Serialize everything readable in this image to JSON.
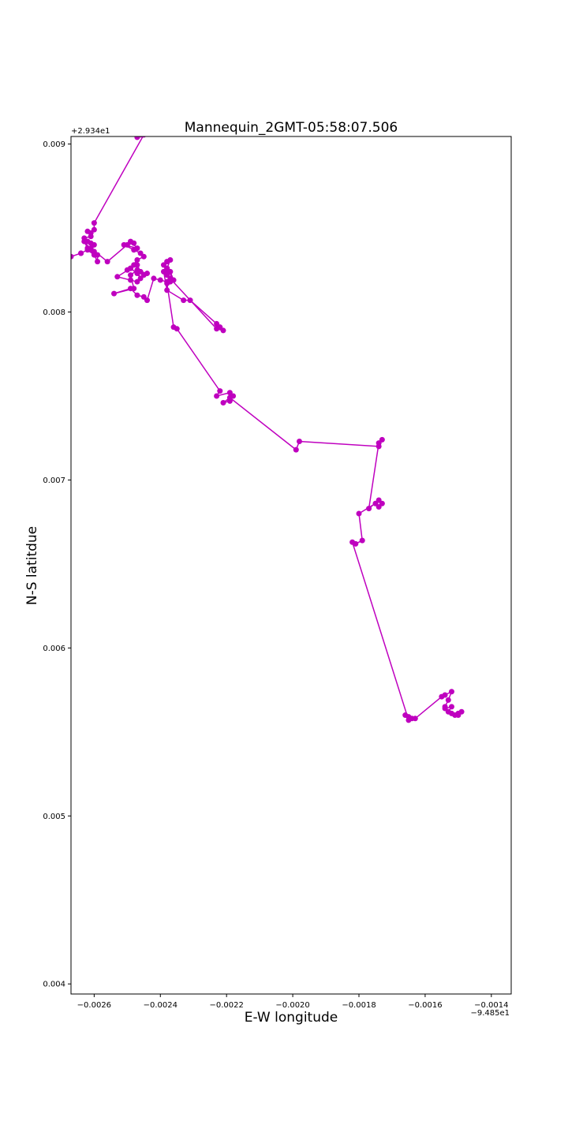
{
  "chart_data": {
    "type": "line",
    "title": "Mannequin_2GMT-05:58:07.506",
    "xlabel": "E-W longitude",
    "ylabel": "N-S latitdue",
    "x_offset_label": "−9.485e1",
    "y_offset_label": "+2.934e1",
    "xlim": [
      -0.00267,
      -0.00134
    ],
    "ylim": [
      0.00394,
      0.009045
    ],
    "xticks": [
      -0.0026,
      -0.0024,
      -0.0022,
      -0.002,
      -0.0018,
      -0.0016,
      -0.0014
    ],
    "xtick_labels": [
      "−0.0026",
      "−0.0024",
      "−0.0022",
      "−0.0020",
      "−0.0018",
      "−0.0016",
      "−0.0014"
    ],
    "yticks": [
      0.004,
      0.005,
      0.006,
      0.007,
      0.008,
      0.009
    ],
    "ytick_labels": [
      "0.004",
      "0.005",
      "0.006",
      "0.007",
      "0.008",
      "0.009"
    ],
    "grid": false,
    "line_color": "#bf00bf",
    "marker_color": "#bf00bf",
    "x": [
      -0.00246,
      -0.00247,
      -0.00245,
      -0.0026,
      -0.0026,
      -0.00261,
      -0.00262,
      -0.00261,
      -0.00263,
      -0.00262,
      -0.00261,
      -0.0026,
      -0.00262,
      -0.00263,
      -0.00261,
      -0.0026,
      -0.00259,
      -0.00259,
      -0.0026,
      -0.00262,
      -0.00264,
      -0.00267,
      -0.00264,
      -0.00261,
      -0.00256,
      -0.0025,
      -0.00248,
      -0.00249,
      -0.00247,
      -0.00251,
      -0.00248,
      -0.00246,
      -0.00245,
      -0.00247,
      -0.00249,
      -0.00248,
      -0.0025,
      -0.00247,
      -0.00246,
      -0.00244,
      -0.00245,
      -0.00247,
      -0.00249,
      -0.00253,
      -0.00249,
      -0.00247,
      -0.00246,
      -0.00247,
      -0.00249,
      -0.00248,
      -0.00254,
      -0.00249,
      -0.00247,
      -0.00245,
      -0.00244,
      -0.00242,
      -0.0024,
      -0.00238,
      -0.00237,
      -0.00238,
      -0.00237,
      -0.00236,
      -0.00238,
      -0.00239,
      -0.00238,
      -0.00237,
      -0.00238,
      -0.00239,
      -0.00238,
      -0.00233,
      -0.00231,
      -0.00223,
      -0.00222,
      -0.00221,
      -0.00223,
      -0.00238,
      -0.00237,
      -0.00238,
      -0.00236,
      -0.00235,
      -0.00222,
      -0.00223,
      -0.00219,
      -0.00218,
      -0.00219,
      -0.00221,
      -0.00219,
      -0.00199,
      -0.00198,
      -0.00174,
      -0.00173,
      -0.00174,
      -0.00177,
      -0.00174,
      -0.00173,
      -0.00174,
      -0.00175,
      -0.0018,
      -0.00179,
      -0.00181,
      -0.00182,
      -0.00165,
      -0.00166,
      -0.00165,
      -0.00164,
      -0.00163,
      -0.00155,
      -0.00154,
      -0.00152,
      -0.00153,
      -0.00154,
      -0.00153,
      -0.00152,
      -0.00154,
      -0.00151,
      -0.0015,
      -0.00149,
      -0.0015,
      -0.00152
    ],
    "y": [
      0.009055,
      0.00904,
      0.009055,
      0.00853,
      0.00849,
      0.00847,
      0.00848,
      0.00845,
      0.00844,
      0.00842,
      0.00841,
      0.0084,
      0.00838,
      0.00842,
      0.00837,
      0.00836,
      0.00834,
      0.0083,
      0.00834,
      0.00837,
      0.00835,
      0.00833,
      0.00835,
      0.00838,
      0.0083,
      0.0084,
      0.00841,
      0.00842,
      0.00838,
      0.0084,
      0.00837,
      0.00835,
      0.00833,
      0.00831,
      0.00826,
      0.00828,
      0.00825,
      0.00828,
      0.00824,
      0.00823,
      0.00822,
      0.00818,
      0.00819,
      0.00821,
      0.00826,
      0.00823,
      0.0082,
      0.00825,
      0.00822,
      0.00814,
      0.00811,
      0.00814,
      0.0081,
      0.00809,
      0.00807,
      0.0082,
      0.00819,
      0.00818,
      0.0082,
      0.00823,
      0.00824,
      0.00819,
      0.00826,
      0.00828,
      0.0083,
      0.00831,
      0.00826,
      0.00824,
      0.00813,
      0.00807,
      0.00807,
      0.00793,
      0.00791,
      0.00789,
      0.0079,
      0.00822,
      0.00818,
      0.00817,
      0.00791,
      0.0079,
      0.00753,
      0.0075,
      0.00752,
      0.0075,
      0.00747,
      0.00746,
      0.00749,
      0.00718,
      0.00723,
      0.0072,
      0.00724,
      0.00722,
      0.00683,
      0.00688,
      0.00686,
      0.00684,
      0.00686,
      0.0068,
      0.00664,
      0.00662,
      0.00663,
      0.00557,
      0.0056,
      0.00559,
      0.00558,
      0.00558,
      0.00571,
      0.00572,
      0.00574,
      0.00569,
      0.00565,
      0.00562,
      0.00565,
      0.00564,
      0.0056,
      0.0056,
      0.00562,
      0.00561,
      0.00561
    ]
  }
}
